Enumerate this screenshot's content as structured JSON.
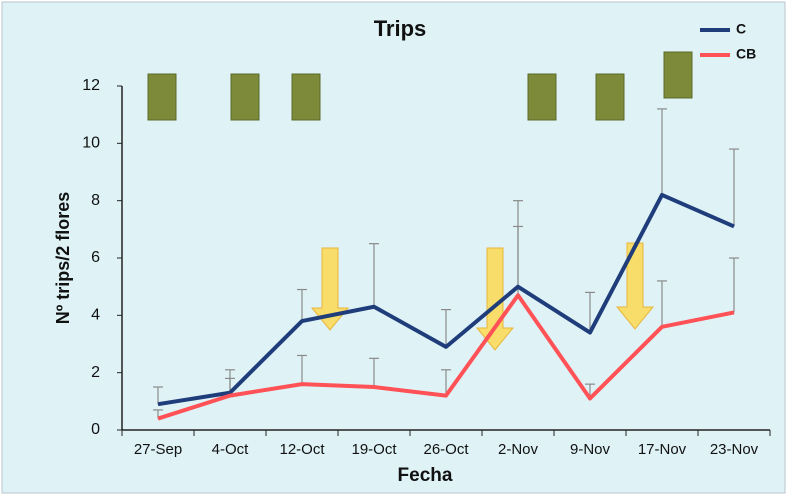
{
  "chart_data": {
    "type": "line",
    "title": "Trips",
    "x_label": "Fecha",
    "y_label": "Nº trips/2 flores",
    "categories": [
      "27-Sep",
      "4-Oct",
      "12-Oct",
      "19-Oct",
      "26-Oct",
      "2-Nov",
      "9-Nov",
      "17-Nov",
      "23-Nov"
    ],
    "series": [
      {
        "name": "C",
        "color": "#1f3d7a",
        "values": [
          0.9,
          1.3,
          3.8,
          4.3,
          2.9,
          5.0,
          3.4,
          8.2,
          7.1
        ],
        "errors": [
          0.6,
          0.8,
          1.1,
          2.2,
          1.3,
          3.0,
          1.4,
          3.0,
          2.7
        ]
      },
      {
        "name": "CB",
        "color": "#ff5257",
        "values": [
          0.4,
          1.2,
          1.6,
          1.5,
          1.2,
          4.7,
          1.1,
          3.6,
          4.1
        ],
        "errors": [
          0.3,
          0.6,
          1.0,
          1.0,
          0.9,
          2.4,
          0.5,
          1.6,
          1.9
        ]
      }
    ],
    "ylim": [
      0,
      12
    ],
    "yticks": [
      0,
      2,
      4,
      6,
      8,
      10,
      12
    ],
    "legend": "top-right",
    "error_color": "#8a8a8a"
  }
}
